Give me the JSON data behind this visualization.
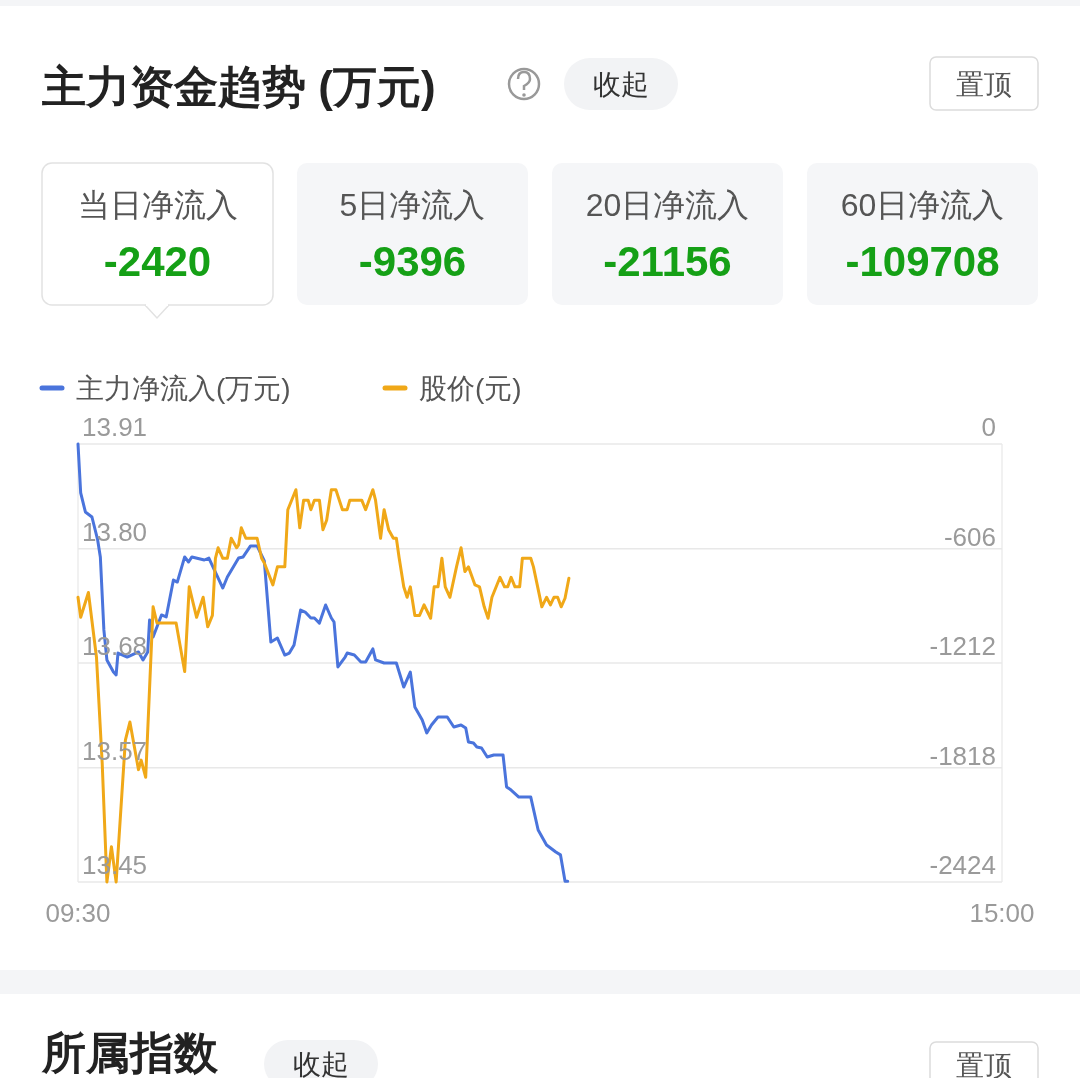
{
  "chart_data": {
    "type": "line",
    "title": "主力资金趋势 (万元)",
    "annotations": [
      "收起",
      "置顶",
      "当日净流入",
      "-2420",
      "5日净流入",
      "-9396",
      "20日净流入",
      "-21156",
      "60日净流入",
      "-109708",
      "所属指数",
      "收起",
      "置顶"
    ],
    "xlim": [
      9.5,
      15
    ],
    "xticks": [
      {
        "value": 9.5,
        "label": "09:30"
      },
      {
        "value": 15,
        "label": "15:00"
      }
    ],
    "ylim": [
      13.45,
      13.91
    ],
    "yticks": [
      {
        "value": 13.45,
        "label": "13.45"
      },
      {
        "value": 13.57,
        "label": "13.57"
      },
      {
        "value": 13.68,
        "label": "13.68"
      },
      {
        "value": 13.8,
        "label": "13.80"
      },
      {
        "value": 13.91,
        "label": "13.91"
      }
    ],
    "y2lim": [
      -2424,
      0
    ],
    "y2ticks": [
      -2424,
      -1818,
      -1212,
      -606,
      0
    ],
    "grid": "y",
    "legend": "top left",
    "marker": "none",
    "line_style": "solid",
    "series": [
      {
        "name": "主力净流入(万元)",
        "color": "#4a74dc",
        "axis": "y2",
        "x": [
          9.5,
          9.516,
          9.544,
          9.583,
          9.617,
          9.633,
          9.654,
          9.672,
          9.711,
          9.727,
          9.738,
          9.793,
          9.86,
          9.887,
          9.915,
          9.926,
          9.947,
          9.997,
          10.025,
          10.068,
          10.091,
          10.135,
          10.158,
          10.178,
          10.252,
          10.279,
          10.362,
          10.389,
          10.456,
          10.483,
          10.527,
          10.566,
          10.609,
          10.648,
          10.687,
          10.731,
          10.758,
          10.786,
          10.825,
          10.852,
          10.886,
          10.907,
          10.937,
          10.974,
          11.008,
          11.024,
          11.047,
          11.09,
          11.102,
          11.145,
          11.184,
          11.212,
          11.255,
          11.271,
          11.322,
          11.395,
          11.439,
          11.478,
          11.505,
          11.549,
          11.576,
          11.604,
          11.643,
          11.698,
          11.737,
          11.78,
          11.808,
          11.824,
          11.854,
          11.874,
          11.902,
          11.936,
          11.975,
          12.03,
          12.051,
          12.078,
          12.124,
          12.195,
          12.239,
          12.289,
          12.344,
          12.372,
          12.399,
          12.415
        ],
        "values": [
          0,
          -271,
          -376,
          -404,
          -531,
          -625,
          -1029,
          -1195,
          -1262,
          -1278,
          -1157,
          -1179,
          -1151,
          -1195,
          -1151,
          -974,
          -1068,
          -946,
          -957,
          -753,
          -764,
          -625,
          -653,
          -625,
          -642,
          -631,
          -797,
          -736,
          -631,
          -625,
          -564,
          -564,
          -647,
          -1096,
          -1074,
          -1168,
          -1157,
          -1112,
          -919,
          -930,
          -963,
          -963,
          -991,
          -891,
          -963,
          -985,
          -1234,
          -1179,
          -1157,
          -1168,
          -1206,
          -1206,
          -1134,
          -1195,
          -1212,
          -1212,
          -1345,
          -1262,
          -1455,
          -1527,
          -1599,
          -1555,
          -1511,
          -1511,
          -1566,
          -1555,
          -1572,
          -1649,
          -1655,
          -1677,
          -1682,
          -1732,
          -1721,
          -1721,
          -1898,
          -1915,
          -1954,
          -1954,
          -2136,
          -2219,
          -2258,
          -2274,
          -2420,
          -2420
        ]
      },
      {
        "name": "股价(元)",
        "color": "#f0a818",
        "x": [
          9.5,
          9.516,
          9.562,
          9.61,
          9.644,
          9.672,
          9.699,
          9.727,
          9.782,
          9.809,
          9.86,
          9.876,
          9.903,
          9.947,
          9.97,
          10.084,
          10.135,
          10.162,
          10.206,
          10.245,
          10.272,
          10.3,
          10.318,
          10.334,
          10.362,
          10.389,
          10.412,
          10.444,
          10.456,
          10.472,
          10.499,
          10.566,
          10.593,
          10.609,
          10.66,
          10.687,
          10.731,
          10.749,
          10.797,
          10.82,
          10.843,
          10.87,
          10.886,
          10.907,
          10.937,
          10.958,
          10.98,
          11.008,
          11.035,
          11.074,
          11.102,
          11.118,
          11.189,
          11.212,
          11.255,
          11.271,
          11.301,
          11.322,
          11.349,
          11.377,
          11.395,
          11.411,
          11.439,
          11.459,
          11.478,
          11.505,
          11.533,
          11.56,
          11.599,
          11.62,
          11.643,
          11.666,
          11.686,
          11.714,
          11.753,
          11.78,
          11.803,
          11.824,
          11.863,
          11.89,
          11.918,
          11.941,
          11.964,
          12.012,
          12.039,
          12.058,
          12.078,
          12.101,
          12.129,
          12.145,
          12.195,
          12.211,
          12.261,
          12.289,
          12.312,
          12.333,
          12.355,
          12.376,
          12.399,
          12.422
        ],
        "values": [
          13.749,
          13.728,
          13.754,
          13.686,
          13.575,
          13.45,
          13.487,
          13.45,
          13.599,
          13.618,
          13.568,
          13.578,
          13.56,
          13.739,
          13.722,
          13.722,
          13.671,
          13.76,
          13.728,
          13.749,
          13.718,
          13.73,
          13.79,
          13.801,
          13.79,
          13.79,
          13.811,
          13.801,
          13.804,
          13.822,
          13.811,
          13.811,
          13.79,
          13.785,
          13.762,
          13.781,
          13.781,
          13.841,
          13.862,
          13.822,
          13.851,
          13.851,
          13.841,
          13.851,
          13.851,
          13.82,
          13.83,
          13.862,
          13.862,
          13.841,
          13.841,
          13.851,
          13.851,
          13.841,
          13.862,
          13.851,
          13.811,
          13.841,
          13.82,
          13.811,
          13.811,
          13.791,
          13.76,
          13.749,
          13.76,
          13.73,
          13.73,
          13.741,
          13.727,
          13.76,
          13.76,
          13.79,
          13.76,
          13.749,
          13.781,
          13.801,
          13.776,
          13.781,
          13.762,
          13.76,
          13.739,
          13.727,
          13.749,
          13.77,
          13.76,
          13.76,
          13.77,
          13.76,
          13.76,
          13.79,
          13.79,
          13.781,
          13.739,
          13.749,
          13.741,
          13.749,
          13.749,
          13.739,
          13.748,
          13.769
        ]
      }
    ]
  }
}
